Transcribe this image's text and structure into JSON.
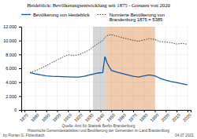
{
  "chart_data": {
    "type": "line",
    "title": "Heideblick: Bevölkerungsentwicklung seit 1875 - Grenzen von 2020",
    "x": [
      1875,
      1880,
      1885,
      1890,
      1895,
      1900,
      1905,
      1910,
      1915,
      1920,
      1925,
      1930,
      1933,
      1936,
      1939,
      1942,
      1944,
      1946,
      1948,
      1950,
      1955,
      1960,
      1965,
      1970,
      1975,
      1980,
      1985,
      1990,
      1993,
      1995,
      2000,
      2005,
      2010,
      2015,
      2020
    ],
    "series": [
      {
        "name": "Bevölkerung von Heideblick",
        "color": "#1555a0",
        "line_style": "solid",
        "values": [
          5385,
          5200,
          5050,
          4920,
          4850,
          4820,
          4800,
          4770,
          4730,
          4730,
          4850,
          5050,
          5150,
          5280,
          5350,
          5400,
          7700,
          6800,
          6200,
          5700,
          5450,
          5250,
          5050,
          4850,
          4750,
          4900,
          5050,
          4900,
          4700,
          4550,
          4300,
          4100,
          3950,
          3780,
          3600
        ]
      },
      {
        "name": "Normierte Bevölkerung von\nBrandenburg 1875 = 5385",
        "color": "#444444",
        "line_style": "dotted",
        "values": [
          5385,
          5650,
          6000,
          6400,
          6800,
          7200,
          7600,
          7950,
          7850,
          7950,
          8300,
          8700,
          9050,
          9400,
          9700,
          10000,
          10450,
          10700,
          10800,
          10850,
          10650,
          10400,
          10250,
          10050,
          9900,
          10100,
          10300,
          10150,
          9950,
          9850,
          9800,
          9700,
          9500,
          9580,
          9480
        ]
      }
    ],
    "spans": [
      {
        "start": 1933,
        "end": 1945,
        "color": "#bbbbbb"
      },
      {
        "start": 1945,
        "end": 1990,
        "color": "#e8a878"
      }
    ],
    "xlim": [
      1867,
      2023
    ],
    "xticks": [
      1870,
      1880,
      1890,
      1900,
      1910,
      1920,
      1930,
      1940,
      1950,
      1960,
      1970,
      1980,
      1990,
      2000,
      2010,
      2020
    ],
    "ylim": [
      0,
      12000
    ],
    "yticks": [
      0,
      {
        "value": 2000,
        "label": "2.000"
      },
      {
        "value": 4000,
        "label": "4.000"
      },
      {
        "value": 6000,
        "label": "6.000"
      },
      {
        "value": 8000,
        "label": "8.000"
      },
      {
        "value": 10000,
        "label": "10.000"
      },
      {
        "value": 12000,
        "label": "12.000"
      }
    ],
    "grid": true,
    "legend": "top",
    "annotations": [
      "Quelle: Amt für Statistik Berlin-Brandenburg",
      "Historische Gemeindestatistiken und Bevölkerung der Gemeinden im Land Brandenburg",
      "by Florian G. Flötenbach",
      "04.07.2021"
    ]
  }
}
